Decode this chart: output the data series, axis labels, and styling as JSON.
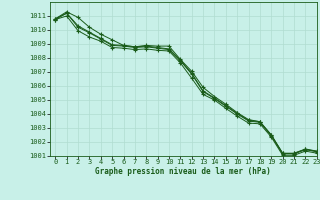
{
  "x": [
    0,
    1,
    2,
    3,
    4,
    5,
    6,
    7,
    8,
    9,
    10,
    11,
    12,
    13,
    14,
    15,
    16,
    17,
    18,
    19,
    20,
    21,
    22,
    23
  ],
  "line1": [
    1010.8,
    1011.3,
    1010.9,
    1010.2,
    1009.7,
    1009.3,
    1008.9,
    1008.8,
    1008.9,
    1008.85,
    1008.85,
    1007.9,
    1007.05,
    1005.9,
    1005.25,
    1004.7,
    1004.1,
    1003.6,
    1003.45,
    1002.5,
    1001.2,
    1001.2,
    1001.5,
    1001.35
  ],
  "line2": [
    1010.8,
    1011.2,
    1010.2,
    1009.8,
    1009.35,
    1008.9,
    1008.85,
    1008.75,
    1008.8,
    1008.7,
    1008.6,
    1007.8,
    1006.85,
    1005.6,
    1005.1,
    1004.55,
    1004.0,
    1003.5,
    1003.4,
    1002.45,
    1001.15,
    1001.15,
    1001.45,
    1001.3
  ],
  "line3": [
    1010.75,
    1011.0,
    1009.95,
    1009.5,
    1009.2,
    1008.75,
    1008.7,
    1008.6,
    1008.65,
    1008.55,
    1008.5,
    1007.65,
    1006.55,
    1005.4,
    1005.0,
    1004.4,
    1003.85,
    1003.35,
    1003.3,
    1002.35,
    1001.05,
    1001.05,
    1001.35,
    1001.2
  ],
  "line4": [
    1010.75,
    1011.2,
    1010.3,
    1009.85,
    1009.4,
    1008.95,
    1008.9,
    1008.8,
    1008.85,
    1008.75,
    1008.65,
    1007.85,
    1006.9,
    1005.65,
    1005.15,
    1004.6,
    1004.05,
    1003.55,
    1003.45,
    1002.5,
    1001.18,
    1001.18,
    1001.48,
    1001.33
  ],
  "bg_color": "#c8f0e8",
  "grid_color": "#b0ddd0",
  "line_color": "#1a5c1a",
  "xlabel": "Graphe pression niveau de la mer (hPa)",
  "ylim_min": 1001,
  "ylim_max": 1012,
  "xlim_min": -0.5,
  "xlim_max": 23,
  "yticks": [
    1001,
    1002,
    1003,
    1004,
    1005,
    1006,
    1007,
    1008,
    1009,
    1010,
    1011
  ],
  "xticks": [
    0,
    1,
    2,
    3,
    4,
    5,
    6,
    7,
    8,
    9,
    10,
    11,
    12,
    13,
    14,
    15,
    16,
    17,
    18,
    19,
    20,
    21,
    22,
    23
  ],
  "tick_fontsize": 5,
  "xlabel_fontsize": 5.5
}
